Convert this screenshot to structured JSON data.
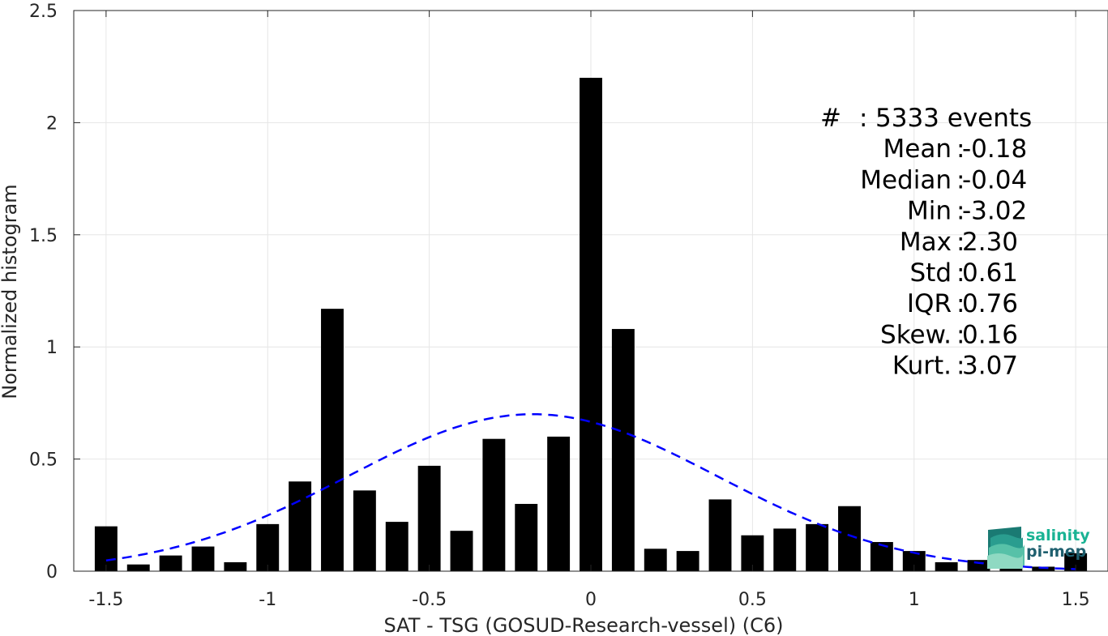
{
  "chart_data": {
    "type": "bar",
    "xlabel": "SAT - TSG (GOSUD-Research-vessel) (C6)",
    "ylabel": "Normalized histogram",
    "xlim": [
      -1.6,
      1.6
    ],
    "ylim": [
      0,
      2.5
    ],
    "grid": true,
    "x_ticks": [
      -1.5,
      -1,
      -0.5,
      0,
      0.5,
      1,
      1.5
    ],
    "x_tick_labels": [
      "-1.5",
      "-1",
      "-0.5",
      "0",
      "0.5",
      "1",
      "1.5"
    ],
    "y_ticks": [
      0,
      0.5,
      1,
      1.5,
      2,
      2.5
    ],
    "y_tick_labels": [
      "0",
      "0.5",
      "1",
      "1.5",
      "2",
      "2.5"
    ],
    "bar_width": 0.07,
    "bars": {
      "x": [
        -1.5,
        -1.4,
        -1.3,
        -1.2,
        -1.1,
        -1.0,
        -0.9,
        -0.8,
        -0.7,
        -0.6,
        -0.5,
        -0.4,
        -0.3,
        -0.2,
        -0.1,
        0.0,
        0.1,
        0.2,
        0.3,
        0.4,
        0.5,
        0.6,
        0.7,
        0.8,
        0.9,
        1.0,
        1.1,
        1.2,
        1.3,
        1.4,
        1.5
      ],
      "values": [
        0.2,
        0.03,
        0.07,
        0.11,
        0.04,
        0.21,
        0.4,
        1.17,
        0.36,
        0.22,
        0.47,
        0.18,
        0.59,
        0.3,
        0.6,
        2.2,
        1.08,
        0.1,
        0.09,
        0.32,
        0.16,
        0.19,
        0.21,
        0.29,
        0.13,
        0.09,
        0.04,
        0.05,
        0.03,
        0.02,
        0.08
      ],
      "color": "#000000"
    },
    "fit_curve": {
      "style": "dashed",
      "color": "#0000ff",
      "mean": -0.18,
      "std": 0.57,
      "x_range": [
        -1.5,
        1.5
      ]
    },
    "stats": [
      {
        "label": "#  ",
        "value": "5333 events"
      },
      {
        "label": "Mean",
        "value": "-0.18"
      },
      {
        "label": "Median",
        "value": "-0.04"
      },
      {
        "label": "Min",
        "value": "-3.02"
      },
      {
        "label": "Max",
        "value": "2.30"
      },
      {
        "label": "Std",
        "value": "0.61"
      },
      {
        "label": "IQR",
        "value": "0.76"
      },
      {
        "label": "Skew.",
        "value": "0.16"
      },
      {
        "label": "Kurt.",
        "value": "3.07"
      }
    ]
  },
  "logo": {
    "line1": "salinity",
    "line2": "pi-mep",
    "color_light": "#1ab394",
    "color_dark": "#1e5f6e"
  }
}
